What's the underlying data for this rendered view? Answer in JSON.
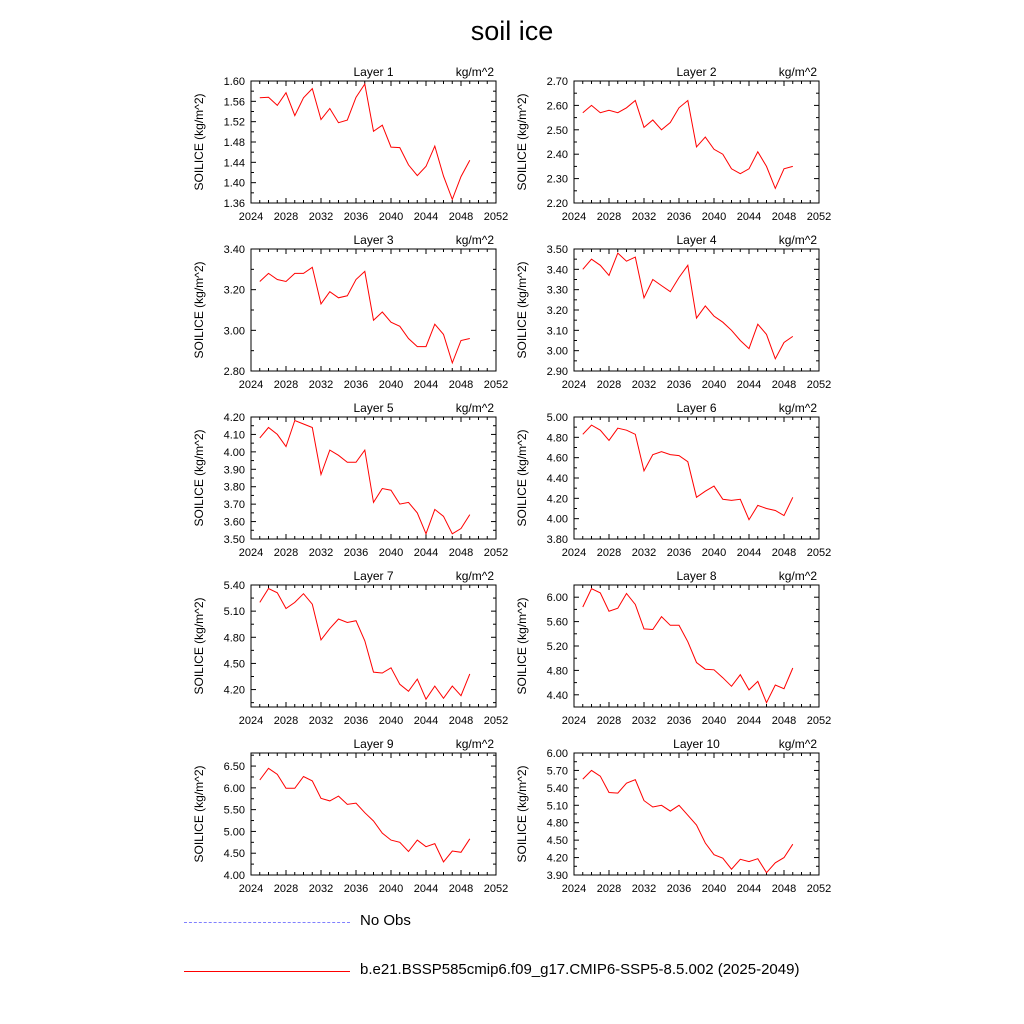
{
  "figure": {
    "title": "soil ice"
  },
  "legend": {
    "entries": [
      {
        "label": "No Obs",
        "style": "dashed",
        "color": "#8080ff"
      },
      {
        "label": "b.e21.BSSP585cmip6.f09_g17.CMIP6-SSP5-8.5.002 (2025-2049)",
        "style": "solid",
        "color": "#ff0000"
      }
    ]
  },
  "chart_data": [
    {
      "type": "line",
      "title": "Layer 1",
      "units": "kg/m^2",
      "ylabel": "SOILICE  (kg/m^2)",
      "xlim": [
        2024,
        2052
      ],
      "xticks": [
        2024,
        2028,
        2032,
        2036,
        2040,
        2044,
        2048,
        2052
      ],
      "ylim": [
        1.36,
        1.6
      ],
      "yticks": [
        "1.36",
        "1.40",
        "1.44",
        "1.48",
        "1.52",
        "1.56",
        "1.60"
      ],
      "color": "#ff0000",
      "series": [
        {
          "x": [
            2025,
            2026,
            2027,
            2028,
            2029,
            2030,
            2031,
            2032,
            2033,
            2034,
            2035,
            2036,
            2037,
            2038,
            2039,
            2040,
            2041,
            2042,
            2043,
            2044,
            2045,
            2046,
            2047,
            2048,
            2049
          ],
          "values": [
            1.567,
            1.568,
            1.552,
            1.577,
            1.532,
            1.567,
            1.585,
            1.524,
            1.546,
            1.518,
            1.523,
            1.568,
            1.594,
            1.501,
            1.513,
            1.47,
            1.469,
            1.435,
            1.414,
            1.432,
            1.472,
            1.413,
            1.367,
            1.412,
            1.444
          ]
        }
      ]
    },
    {
      "type": "line",
      "title": "Layer 2",
      "units": "kg/m^2",
      "ylabel": "SOILICE  (kg/m^2)",
      "xlim": [
        2024,
        2052
      ],
      "xticks": [
        2024,
        2028,
        2032,
        2036,
        2040,
        2044,
        2048,
        2052
      ],
      "ylim": [
        2.2,
        2.7
      ],
      "yticks": [
        "2.20",
        "2.30",
        "2.40",
        "2.50",
        "2.60",
        "2.70"
      ],
      "color": "#ff0000",
      "series": [
        {
          "x": [
            2025,
            2026,
            2027,
            2028,
            2029,
            2030,
            2031,
            2032,
            2033,
            2034,
            2035,
            2036,
            2037,
            2038,
            2039,
            2040,
            2041,
            2042,
            2043,
            2044,
            2045,
            2046,
            2047,
            2048,
            2049
          ],
          "values": [
            2.57,
            2.6,
            2.57,
            2.58,
            2.57,
            2.59,
            2.62,
            2.51,
            2.54,
            2.5,
            2.53,
            2.59,
            2.62,
            2.43,
            2.47,
            2.42,
            2.4,
            2.34,
            2.32,
            2.34,
            2.41,
            2.35,
            2.26,
            2.34,
            2.35
          ]
        }
      ]
    },
    {
      "type": "line",
      "title": "Layer 3",
      "units": "kg/m^2",
      "ylabel": "SOILICE  (kg/m^2)",
      "xlim": [
        2024,
        2052
      ],
      "xticks": [
        2024,
        2028,
        2032,
        2036,
        2040,
        2044,
        2048,
        2052
      ],
      "ylim": [
        2.8,
        3.4
      ],
      "yticks": [
        "2.80",
        "3.00",
        "3.20",
        "3.40"
      ],
      "color": "#ff0000",
      "series": [
        {
          "x": [
            2025,
            2026,
            2027,
            2028,
            2029,
            2030,
            2031,
            2032,
            2033,
            2034,
            2035,
            2036,
            2037,
            2038,
            2039,
            2040,
            2041,
            2042,
            2043,
            2044,
            2045,
            2046,
            2047,
            2048,
            2049
          ],
          "values": [
            3.24,
            3.28,
            3.25,
            3.24,
            3.28,
            3.28,
            3.31,
            3.13,
            3.19,
            3.16,
            3.17,
            3.25,
            3.29,
            3.05,
            3.09,
            3.04,
            3.02,
            2.96,
            2.92,
            2.92,
            3.03,
            2.98,
            2.84,
            2.95,
            2.96
          ]
        }
      ]
    },
    {
      "type": "line",
      "title": "Layer 4",
      "units": "kg/m^2",
      "ylabel": "SOILICE  (kg/m^2)",
      "xlim": [
        2024,
        2052
      ],
      "xticks": [
        2024,
        2028,
        2032,
        2036,
        2040,
        2044,
        2048,
        2052
      ],
      "ylim": [
        2.9,
        3.5
      ],
      "yticks": [
        "2.90",
        "3.00",
        "3.10",
        "3.20",
        "3.30",
        "3.40",
        "3.50"
      ],
      "color": "#ff0000",
      "series": [
        {
          "x": [
            2025,
            2026,
            2027,
            2028,
            2029,
            2030,
            2031,
            2032,
            2033,
            2034,
            2035,
            2036,
            2037,
            2038,
            2039,
            2040,
            2041,
            2042,
            2043,
            2044,
            2045,
            2046,
            2047,
            2048,
            2049
          ],
          "values": [
            3.4,
            3.45,
            3.42,
            3.37,
            3.48,
            3.44,
            3.46,
            3.26,
            3.35,
            3.32,
            3.29,
            3.36,
            3.42,
            3.16,
            3.22,
            3.17,
            3.14,
            3.1,
            3.05,
            3.01,
            3.13,
            3.08,
            2.96,
            3.04,
            3.07
          ]
        }
      ]
    },
    {
      "type": "line",
      "title": "Layer 5",
      "units": "kg/m^2",
      "ylabel": "SOILICE  (kg/m^2)",
      "xlim": [
        2024,
        2052
      ],
      "xticks": [
        2024,
        2028,
        2032,
        2036,
        2040,
        2044,
        2048,
        2052
      ],
      "ylim": [
        3.5,
        4.2
      ],
      "yticks": [
        "3.50",
        "3.60",
        "3.70",
        "3.80",
        "3.90",
        "4.00",
        "4.10",
        "4.20"
      ],
      "color": "#ff0000",
      "series": [
        {
          "x": [
            2025,
            2026,
            2027,
            2028,
            2029,
            2030,
            2031,
            2032,
            2033,
            2034,
            2035,
            2036,
            2037,
            2038,
            2039,
            2040,
            2041,
            2042,
            2043,
            2044,
            2045,
            2046,
            2047,
            2048,
            2049
          ],
          "values": [
            4.08,
            4.14,
            4.1,
            4.03,
            4.18,
            4.16,
            4.14,
            3.87,
            4.01,
            3.98,
            3.94,
            3.94,
            4.01,
            3.71,
            3.79,
            3.78,
            3.7,
            3.71,
            3.65,
            3.53,
            3.67,
            3.63,
            3.53,
            3.56,
            3.64
          ]
        }
      ]
    },
    {
      "type": "line",
      "title": "Layer 6",
      "units": "kg/m^2",
      "ylabel": "SOILICE  (kg/m^2)",
      "xlim": [
        2024,
        2052
      ],
      "xticks": [
        2024,
        2028,
        2032,
        2036,
        2040,
        2044,
        2048,
        2052
      ],
      "ylim": [
        3.8,
        5.0
      ],
      "yticks": [
        "3.80",
        "4.00",
        "4.20",
        "4.40",
        "4.60",
        "4.80",
        "5.00"
      ],
      "color": "#ff0000",
      "series": [
        {
          "x": [
            2025,
            2026,
            2027,
            2028,
            2029,
            2030,
            2031,
            2032,
            2033,
            2034,
            2035,
            2036,
            2037,
            2038,
            2039,
            2040,
            2041,
            2042,
            2043,
            2044,
            2045,
            2046,
            2047,
            2048,
            2049
          ],
          "values": [
            4.83,
            4.92,
            4.87,
            4.77,
            4.89,
            4.87,
            4.83,
            4.47,
            4.63,
            4.66,
            4.63,
            4.62,
            4.56,
            4.21,
            4.27,
            4.32,
            4.19,
            4.18,
            4.19,
            3.99,
            4.13,
            4.1,
            4.08,
            4.03,
            4.21
          ]
        }
      ]
    },
    {
      "type": "line",
      "title": "Layer 7",
      "units": "kg/m^2",
      "ylabel": "SOILICE  (kg/m^2)",
      "xlim": [
        2024,
        2052
      ],
      "xticks": [
        2024,
        2028,
        2032,
        2036,
        2040,
        2044,
        2048,
        2052
      ],
      "ylim": [
        4.0,
        5.4
      ],
      "yticks": [
        "4.20",
        "4.50",
        "4.80",
        "5.10",
        "5.40"
      ],
      "color": "#ff0000",
      "series": [
        {
          "x": [
            2025,
            2026,
            2027,
            2028,
            2029,
            2030,
            2031,
            2032,
            2033,
            2034,
            2035,
            2036,
            2037,
            2038,
            2039,
            2040,
            2041,
            2042,
            2043,
            2044,
            2045,
            2046,
            2047,
            2048,
            2049
          ],
          "values": [
            5.2,
            5.36,
            5.31,
            5.13,
            5.2,
            5.3,
            5.18,
            4.77,
            4.9,
            5.01,
            4.97,
            4.99,
            4.76,
            4.4,
            4.39,
            4.45,
            4.26,
            4.18,
            4.32,
            4.09,
            4.24,
            4.1,
            4.24,
            4.13,
            4.38
          ]
        }
      ]
    },
    {
      "type": "line",
      "title": "Layer 8",
      "units": "kg/m^2",
      "ylabel": "SOILICE  (kg/m^2)",
      "xlim": [
        2024,
        2052
      ],
      "xticks": [
        2024,
        2028,
        2032,
        2036,
        2040,
        2044,
        2048,
        2052
      ],
      "ylim": [
        4.2,
        6.2
      ],
      "yticks": [
        "4.40",
        "4.80",
        "5.20",
        "5.60",
        "6.00"
      ],
      "color": "#ff0000",
      "series": [
        {
          "x": [
            2025,
            2026,
            2027,
            2028,
            2029,
            2030,
            2031,
            2032,
            2033,
            2034,
            2035,
            2036,
            2037,
            2038,
            2039,
            2040,
            2041,
            2042,
            2043,
            2044,
            2045,
            2046,
            2047,
            2048,
            2049
          ],
          "values": [
            5.84,
            6.14,
            6.07,
            5.77,
            5.82,
            6.06,
            5.88,
            5.48,
            5.47,
            5.68,
            5.54,
            5.54,
            5.27,
            4.93,
            4.82,
            4.81,
            4.68,
            4.54,
            4.73,
            4.48,
            4.62,
            4.27,
            4.56,
            4.5,
            4.84
          ]
        }
      ]
    },
    {
      "type": "line",
      "title": "Layer 9",
      "units": "kg/m^2",
      "ylabel": "SOILICE  (kg/m^2)",
      "xlim": [
        2024,
        2052
      ],
      "xticks": [
        2024,
        2028,
        2032,
        2036,
        2040,
        2044,
        2048,
        2052
      ],
      "ylim": [
        4.0,
        6.8
      ],
      "yticks": [
        "4.00",
        "4.50",
        "5.00",
        "5.50",
        "6.00",
        "6.50"
      ],
      "color": "#ff0000",
      "series": [
        {
          "x": [
            2025,
            2026,
            2027,
            2028,
            2029,
            2030,
            2031,
            2032,
            2033,
            2034,
            2035,
            2036,
            2037,
            2038,
            2039,
            2040,
            2041,
            2042,
            2043,
            2044,
            2045,
            2046,
            2047,
            2048,
            2049
          ],
          "values": [
            6.18,
            6.45,
            6.31,
            5.99,
            5.99,
            6.26,
            6.16,
            5.76,
            5.7,
            5.81,
            5.62,
            5.65,
            5.43,
            5.24,
            4.96,
            4.8,
            4.75,
            4.54,
            4.8,
            4.65,
            4.72,
            4.3,
            4.55,
            4.52,
            4.83
          ]
        }
      ]
    },
    {
      "type": "line",
      "title": "Layer 10",
      "units": "kg/m^2",
      "ylabel": "SOILICE  (kg/m^2)",
      "xlim": [
        2024,
        2052
      ],
      "xticks": [
        2024,
        2028,
        2032,
        2036,
        2040,
        2044,
        2048,
        2052
      ],
      "ylim": [
        3.9,
        6.0
      ],
      "yticks": [
        "3.90",
        "4.20",
        "4.50",
        "4.80",
        "5.10",
        "5.40",
        "5.70",
        "6.00"
      ],
      "color": "#ff0000",
      "series": [
        {
          "x": [
            2025,
            2026,
            2027,
            2028,
            2029,
            2030,
            2031,
            2032,
            2033,
            2034,
            2035,
            2036,
            2037,
            2038,
            2039,
            2040,
            2041,
            2042,
            2043,
            2044,
            2045,
            2046,
            2047,
            2048,
            2049
          ],
          "values": [
            5.55,
            5.7,
            5.6,
            5.32,
            5.31,
            5.48,
            5.54,
            5.18,
            5.07,
            5.1,
            5.0,
            5.1,
            4.93,
            4.76,
            4.45,
            4.25,
            4.19,
            4.0,
            4.17,
            4.13,
            4.18,
            3.94,
            4.11,
            4.2,
            4.43
          ]
        }
      ]
    }
  ]
}
